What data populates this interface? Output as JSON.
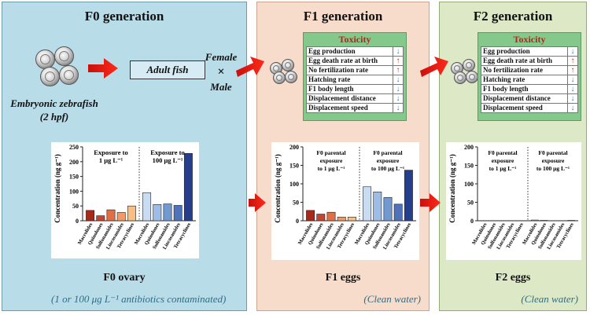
{
  "panels": {
    "f0": {
      "title": "F0 generation",
      "organ": "F0 ovary",
      "footer": "(1 or 100 μg L⁻¹ antibiotics contaminated)"
    },
    "f1": {
      "title": "F1 generation",
      "organ": "F1 eggs",
      "footer": "(Clean water)"
    },
    "f2": {
      "title": "F2 generation",
      "organ": "F2 eggs",
      "footer": "(Clean water)"
    }
  },
  "f0_labels": {
    "adult_fish": "Adult fish",
    "female": "Female",
    "times": "×",
    "male": "Male",
    "embryo_line1": "Embryonic zebrafish",
    "embryo_line2": "(2 hpf)"
  },
  "toxicity": {
    "title": "Toxicity",
    "up_color": "#d0271d",
    "down_color": "#2b7bd6",
    "f1_rows": [
      {
        "label": "Egg production",
        "dir": "down"
      },
      {
        "label": "Egg death rate at birth",
        "dir": "up"
      },
      {
        "label": "No fertilization rate",
        "dir": "up"
      },
      {
        "label": "Hatching rate",
        "dir": "down"
      },
      {
        "label": "F1 body length",
        "dir": "down"
      },
      {
        "label": "Displacement distance",
        "dir": "down"
      },
      {
        "label": "Displacement speed",
        "dir": "down"
      }
    ],
    "f2_rows": [
      {
        "label": "Egg production",
        "dir": "down"
      },
      {
        "label": "Egg death rate at birth",
        "dir": "up"
      },
      {
        "label": "No fertilization rate",
        "dir": "up"
      },
      {
        "label": "Hatching rate",
        "dir": "down"
      },
      {
        "label": "F1 body length",
        "dir": "down"
      },
      {
        "label": "Displacement distance",
        "dir": "down"
      },
      {
        "label": "Displacement speed",
        "dir": "down"
      }
    ]
  },
  "chart_data": [
    {
      "type": "bar",
      "id": "f0",
      "title": "F0 ovary",
      "ylabel": "Concentration (ng g⁻¹)",
      "ylim": [
        0,
        250
      ],
      "yticks": [
        0,
        50,
        100,
        150,
        200,
        250
      ],
      "categories": [
        "Macrolides",
        "Quinolones",
        "Sulfonamides",
        "Lincosamides",
        "Tetracyclines"
      ],
      "series": [
        {
          "name": "Exposure to 1 μg L⁻¹",
          "label_lines": [
            "Exposure to",
            "1 μg L⁻¹"
          ],
          "values": [
            35,
            17,
            37,
            28,
            50
          ],
          "colors": [
            "#a52a1c",
            "#c7452f",
            "#e06f45",
            "#f29a65",
            "#f7bf85"
          ]
        },
        {
          "name": "Exposure to 100 μg L⁻¹",
          "label_lines": [
            "Exposure to",
            "100 μg L⁻¹"
          ],
          "values": [
            95,
            55,
            57,
            52,
            228
          ],
          "colors": [
            "#c9dcf2",
            "#9dbde6",
            "#7399d1",
            "#4f72b8",
            "#263f8c"
          ]
        }
      ]
    },
    {
      "type": "bar",
      "id": "f1",
      "title": "F1 eggs",
      "ylabel": "Concentration (ng g⁻¹)",
      "ylim": [
        0,
        200
      ],
      "yticks": [
        0,
        50,
        100,
        150,
        200
      ],
      "categories": [
        "Macrolides",
        "Quinolones",
        "Sulfonamides",
        "Lincosamides",
        "Tetracyclines"
      ],
      "series": [
        {
          "name": "F0 parental exposure to 1 μg L⁻¹",
          "label_lines": [
            "F0 parental",
            "exposure",
            "to 1 μg L⁻¹"
          ],
          "values": [
            28,
            18,
            23,
            10,
            10
          ],
          "colors": [
            "#a52a1c",
            "#c7452f",
            "#e06f45",
            "#f29a65",
            "#f7bf85"
          ]
        },
        {
          "name": "F0 parental exposure to 100 μg L⁻¹",
          "label_lines": [
            "F0 parental",
            "exposure",
            "to 100 μg L⁻¹"
          ],
          "values": [
            92,
            78,
            63,
            45,
            137
          ],
          "colors": [
            "#c9dcf2",
            "#9dbde6",
            "#7399d1",
            "#4f72b8",
            "#263f8c"
          ]
        }
      ]
    },
    {
      "type": "bar",
      "id": "f2",
      "title": "F2 eggs",
      "ylabel": "Concentration (ng g⁻¹)",
      "ylim": [
        0,
        200
      ],
      "yticks": [
        0,
        50,
        100,
        150,
        200
      ],
      "categories": [
        "Macrolides",
        "Quinolones",
        "Sulfonamides",
        "Lincosamides",
        "Tetracyclines"
      ],
      "series": [
        {
          "name": "F0 parental exposure to 1 μg L⁻¹",
          "label_lines": [
            "F0 parental",
            "exposure",
            "to 1 μg L⁻¹"
          ],
          "values": [
            0,
            0,
            0,
            0,
            0
          ],
          "colors": [
            "#a52a1c",
            "#c7452f",
            "#e06f45",
            "#f29a65",
            "#f7bf85"
          ]
        },
        {
          "name": "F0 parental exposure to 100 μg L⁻¹",
          "label_lines": [
            "F0 parental",
            "exposure",
            "to 100 μg L⁻¹"
          ],
          "values": [
            2,
            1,
            0,
            0,
            1
          ],
          "colors": [
            "#c9dcf2",
            "#9dbde6",
            "#7399d1",
            "#4f72b8",
            "#263f8c"
          ]
        }
      ]
    }
  ]
}
